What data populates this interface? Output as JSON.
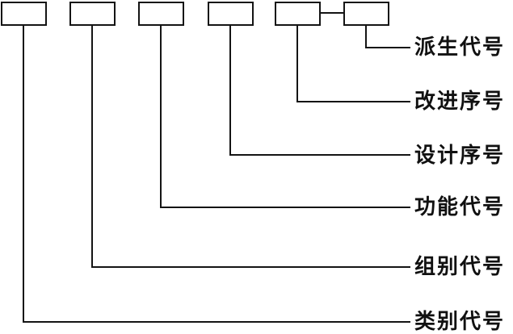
{
  "diagram": {
    "background": "#ffffff",
    "line_color": "#141414",
    "box_count": 6,
    "labels": [
      {
        "text": "派生代号"
      },
      {
        "text": "改进序号"
      },
      {
        "text": "设计序号"
      },
      {
        "text": "功能代号"
      },
      {
        "text": "组别代号"
      },
      {
        "text": "类别代号"
      }
    ]
  }
}
